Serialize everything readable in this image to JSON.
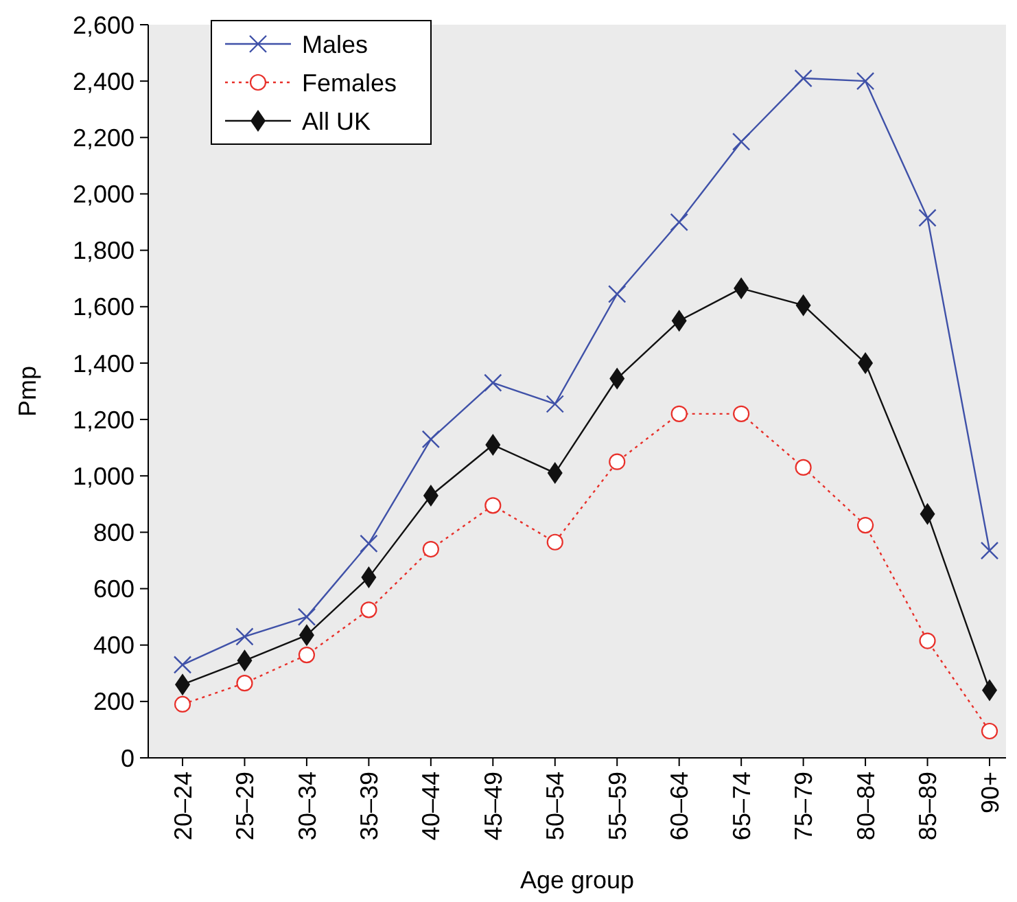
{
  "chart_data": {
    "type": "line",
    "xlabel": "Age group",
    "ylabel": "Pmp",
    "categories": [
      "20–24",
      "25–29",
      "30–34",
      "35–39",
      "40–44",
      "45–49",
      "50–54",
      "55–59",
      "60–64",
      "65–74",
      "75–79",
      "80–84",
      "85–89",
      "90+"
    ],
    "series": [
      {
        "name": "Males",
        "color": "#3f51a8",
        "marker": "cross",
        "line_style": "solid",
        "values": [
          330,
          430,
          500,
          760,
          1130,
          1330,
          1255,
          1645,
          1900,
          2185,
          2410,
          2400,
          1915,
          735
        ]
      },
      {
        "name": "Females",
        "color": "#e8302a",
        "marker": "circle",
        "line_style": "dotted",
        "values": [
          190,
          265,
          365,
          525,
          740,
          895,
          765,
          1050,
          1220,
          1220,
          1030,
          825,
          415,
          95
        ]
      },
      {
        "name": "All UK",
        "color": "#111111",
        "marker": "diamond",
        "line_style": "solid",
        "values": [
          260,
          345,
          435,
          640,
          930,
          1110,
          1010,
          1345,
          1550,
          1665,
          1605,
          1400,
          865,
          240
        ]
      }
    ],
    "ylim": [
      0,
      2600
    ],
    "yticks": [
      0,
      200,
      400,
      600,
      800,
      {
        "value": 1000,
        "label": "1,000"
      },
      {
        "value": 1200,
        "label": "1,200"
      },
      {
        "value": 1400,
        "label": "1,400"
      },
      {
        "value": 1600,
        "label": "1,600"
      },
      {
        "value": 1800,
        "label": "1,800"
      },
      {
        "value": 2000,
        "label": "2,000"
      },
      {
        "value": 2200,
        "label": "2,200"
      },
      {
        "value": 2400,
        "label": "2,400"
      },
      {
        "value": 2600,
        "label": "2,600"
      }
    ],
    "grid": false,
    "legend": "top left"
  }
}
